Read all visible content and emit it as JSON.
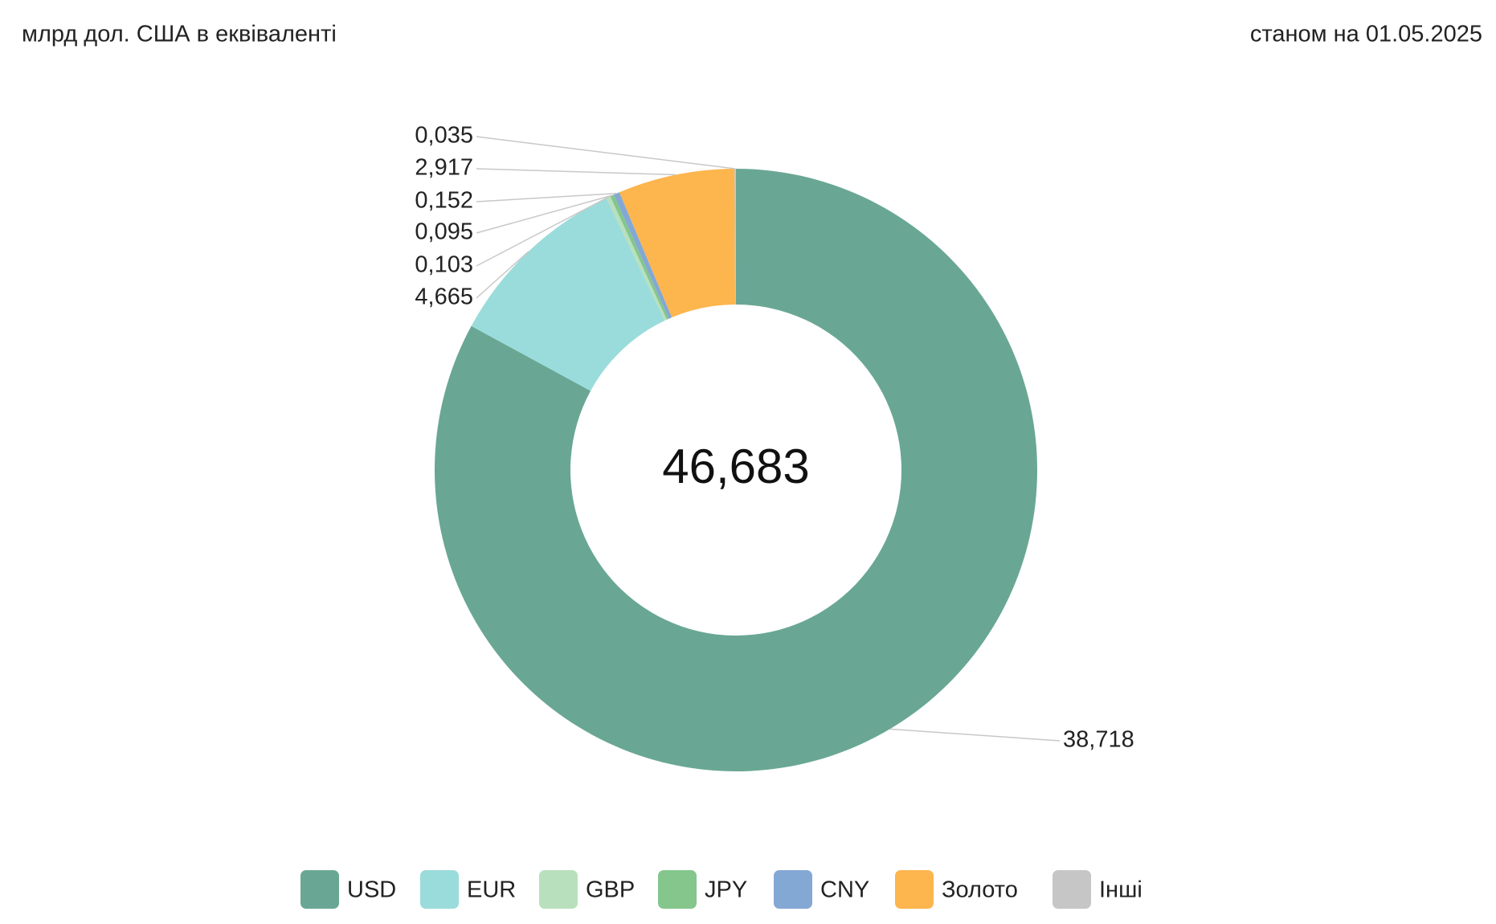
{
  "chart_data": {
    "type": "donut",
    "subtitle": "млрд дол. США в еквіваленті",
    "date_note": "станом на 01.05.2025",
    "total": {
      "value": 46.683,
      "label": "46,683"
    },
    "categories": [
      "USD",
      "EUR",
      "GBP",
      "JPY",
      "CNY",
      "Золото",
      "Інші"
    ],
    "values": [
      38.718,
      4.665,
      0.103,
      0.095,
      0.152,
      2.917,
      0.035
    ],
    "value_labels": [
      "38,718",
      "4,665",
      "0,103",
      "0,095",
      "0,152",
      "2,917",
      "0,035"
    ],
    "colors": [
      "#69a794",
      "#9adcdb",
      "#b8e0bc",
      "#84c68b",
      "#84a8d4",
      "#fdb54e",
      "#c6c6c6"
    ],
    "legend": "bottom"
  }
}
